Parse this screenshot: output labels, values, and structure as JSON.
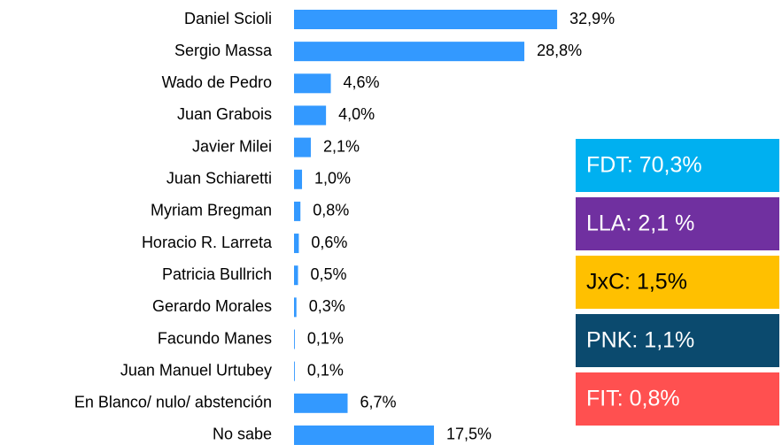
{
  "chart_data": {
    "type": "bar",
    "orientation": "horizontal",
    "categories": [
      "Daniel Scioli",
      "Sergio Massa",
      "Wado de Pedro",
      "Juan Grabois",
      "Javier Milei",
      "Juan Schiaretti",
      "Myriam Bregman",
      "Horacio R. Larreta",
      "Patricia Bullrich",
      "Gerardo Morales",
      "Facundo Manes",
      "Juan Manuel Urtubey",
      "En Blanco/ nulo/ abstención",
      "No sabe"
    ],
    "values": [
      32.9,
      28.8,
      4.6,
      4.0,
      2.1,
      1.0,
      0.8,
      0.6,
      0.5,
      0.3,
      0.1,
      0.1,
      6.7,
      17.5
    ],
    "value_labels": [
      "32,9%",
      "28,8%",
      "4,6%",
      "4,0%",
      "2,1%",
      "1,0%",
      "0,8%",
      "0,6%",
      "0,5%",
      "0,3%",
      "0,1%",
      "0,1%",
      "6,7%",
      "17,5%"
    ],
    "color": "#3399ff",
    "annotations": [
      {
        "text": "FDT: 70,3%",
        "color": "#00b0f0",
        "text_color": "#ffffff"
      },
      {
        "text": "LLA: 2,1 %",
        "color": "#7030a0",
        "text_color": "#ffffff"
      },
      {
        "text": "JxC: 1,5%",
        "color": "#ffc000",
        "text_color": "#000000"
      },
      {
        "text": "PNK: 1,1%",
        "color": "#0b4a6e",
        "text_color": "#ffffff"
      },
      {
        "text": "FIT: 0,8%",
        "color": "#ff5050",
        "text_color": "#ffffff"
      }
    ]
  }
}
